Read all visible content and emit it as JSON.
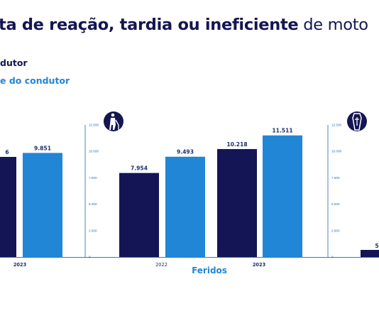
{
  "title": {
    "bold": "ta de reação, tardia ou ineficiente",
    "light": " de moto"
  },
  "legend": {
    "item1": "dutor",
    "item2": "e do condutor"
  },
  "colors": {
    "series1": "#131555",
    "series2": "#2186d6",
    "axis": "#4a86c8",
    "text_dark": "#141652"
  },
  "icons": [
    "walker-person-icon",
    "coffin-cross-icon"
  ],
  "chart_data": [
    {
      "type": "bar",
      "title": "",
      "categories": [
        "2023"
      ],
      "series": [
        {
          "values": [
            null
          ]
        },
        {
          "values": [
            9851
          ]
        }
      ],
      "value_labels": [
        "6",
        "9.851"
      ],
      "note": "partially cropped at left edge"
    },
    {
      "type": "bar",
      "title": "Feridos",
      "xlabel": "Feridos",
      "categories": [
        "2022",
        "2023"
      ],
      "series": [
        {
          "values": [
            7954,
            10218
          ]
        },
        {
          "values": [
            9493,
            11511
          ]
        }
      ],
      "value_labels": [
        "7.954",
        "9.493",
        "10.218",
        "11.511"
      ],
      "yticks": [
        "0",
        "2.500",
        "5.000",
        "7.500",
        "10.000",
        "12.500"
      ],
      "ylim": [
        0,
        12500
      ],
      "grid": false
    },
    {
      "type": "bar",
      "title": "",
      "categories": [
        ""
      ],
      "series": [
        {
          "values": [
            null
          ]
        }
      ],
      "value_labels": [
        "5"
      ],
      "yticks": [
        "0",
        "2.500",
        "5.000",
        "7.500",
        "10.000",
        "12.500"
      ],
      "ylim": [
        0,
        12500
      ],
      "note": "partially cropped at right edge"
    }
  ]
}
